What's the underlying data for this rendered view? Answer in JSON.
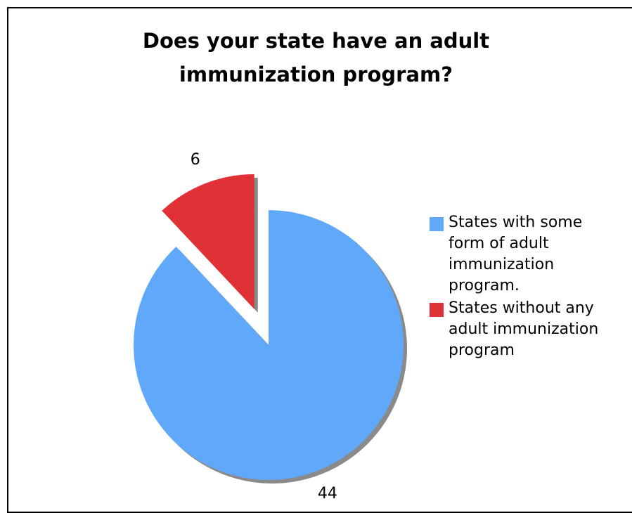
{
  "chart_data": {
    "type": "pie",
    "title": "Does your state have an adult immunization program?",
    "title_lines": [
      "Does your state have an adult",
      "immunization program?"
    ],
    "categories": [
      "States with some form of adult immunization program.",
      "States without any adult immunization program"
    ],
    "legend_lines": [
      [
        "States with some",
        "form of adult",
        "immunization",
        "program."
      ],
      [
        "States without any",
        "adult immunization",
        "program"
      ]
    ],
    "values": [
      44,
      6
    ],
    "data_labels": [
      "44",
      "6"
    ],
    "colors": [
      "#60a8fa",
      "#e03137"
    ],
    "exploded": [
      false,
      true
    ],
    "legend_position": "right",
    "start_angle_deg": 0
  }
}
